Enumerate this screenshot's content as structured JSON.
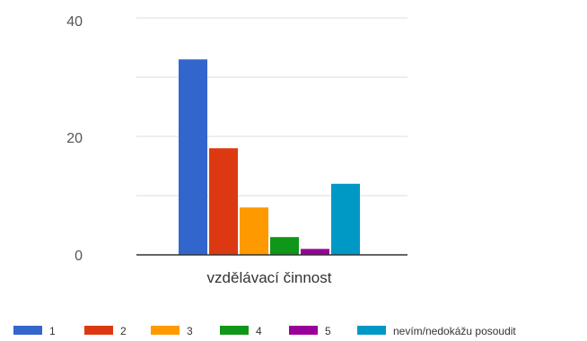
{
  "chart_data": {
    "type": "bar",
    "categories": [
      "vzdělávací činnost"
    ],
    "series": [
      {
        "name": "1",
        "values": [
          33
        ],
        "color": "#3366cc"
      },
      {
        "name": "2",
        "values": [
          18
        ],
        "color": "#dc3912"
      },
      {
        "name": "3",
        "values": [
          8
        ],
        "color": "#ff9900"
      },
      {
        "name": "4",
        "values": [
          3
        ],
        "color": "#109618"
      },
      {
        "name": "5",
        "values": [
          1
        ],
        "color": "#990099"
      },
      {
        "name": "nevím/nedokážu posoudit",
        "values": [
          12
        ],
        "color": "#0099c6"
      }
    ],
    "y_ticks": [
      "0",
      "20",
      "40"
    ],
    "ylim": [
      0,
      40
    ],
    "grid": true,
    "legend_position": "bottom",
    "title": "",
    "xlabel": "",
    "ylabel": ""
  }
}
